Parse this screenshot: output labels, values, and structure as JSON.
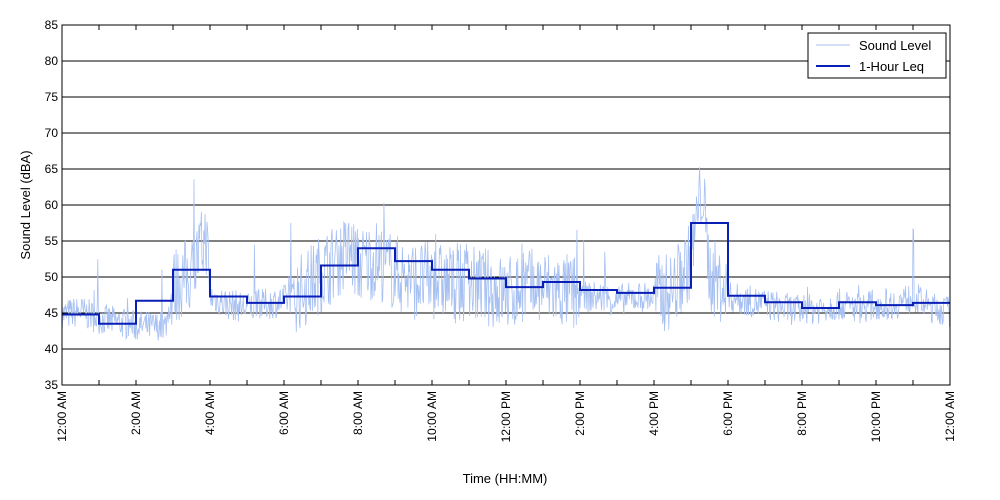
{
  "chart_data": {
    "type": "line",
    "title": "",
    "xlabel": "Time (HH:MM)",
    "ylabel": "Sound Level (dBA)",
    "xlim": [
      0,
      24
    ],
    "ylim": [
      35,
      85
    ],
    "y_ticks": [
      35,
      40,
      45,
      50,
      55,
      60,
      65,
      70,
      75,
      80,
      85
    ],
    "x_tick_hours": [
      0,
      2,
      4,
      6,
      8,
      10,
      12,
      14,
      16,
      18,
      20,
      22,
      24
    ],
    "x_tick_labels": [
      "12:00 AM",
      "2:00 AM",
      "4:00 AM",
      "6:00 AM",
      "8:00 AM",
      "10:00 AM",
      "12:00 PM",
      "2:00 PM",
      "4:00 PM",
      "6:00 PM",
      "8:00 PM",
      "10:00 PM",
      "12:00 AM"
    ],
    "grid": true,
    "grid_axis": "y",
    "legend_position": "top-right",
    "colors": {
      "sound_level": "#a7c0f2",
      "leq": "#0a1fb5"
    },
    "series": [
      {
        "name": "Sound Level",
        "style": "thin light-blue line",
        "x": [
          0.0,
          0.5,
          1.0,
          1.5,
          2.0,
          2.5,
          2.8,
          3.0,
          3.5,
          3.9,
          4.0,
          4.5,
          5.0,
          5.5,
          6.0,
          6.5,
          7.0,
          7.5,
          7.8,
          8.0,
          8.5,
          9.0,
          9.5,
          10.0,
          10.5,
          11.0,
          11.5,
          12.0,
          12.5,
          13.0,
          13.5,
          14.0,
          14.5,
          15.0,
          15.5,
          16.0,
          16.5,
          17.0,
          17.3,
          17.5,
          18.0,
          18.5,
          19.0,
          19.5,
          20.0,
          20.5,
          21.0,
          21.5,
          22.0,
          22.5,
          23.0,
          23.5,
          24.0
        ],
        "y": [
          44.5,
          45.0,
          44.0,
          43.5,
          43.0,
          42.8,
          43.0,
          48.0,
          50.0,
          55.0,
          47.0,
          46.0,
          45.5,
          46.0,
          46.5,
          47.5,
          50.0,
          52.0,
          53.0,
          51.0,
          52.0,
          50.0,
          49.0,
          49.0,
          48.5,
          48.5,
          48.0,
          47.0,
          48.0,
          48.0,
          47.5,
          47.0,
          47.0,
          46.5,
          47.0,
          47.0,
          47.5,
          52.0,
          62.0,
          50.0,
          47.0,
          46.5,
          46.0,
          45.5,
          45.0,
          45.5,
          46.0,
          45.5,
          46.0,
          46.0,
          47.0,
          45.5,
          45.0
        ]
      },
      {
        "name": "1-Hour Leq",
        "style": "thick dark-blue step line",
        "hours": [
          0,
          1,
          2,
          3,
          4,
          5,
          6,
          7,
          8,
          9,
          10,
          11,
          12,
          13,
          14,
          15,
          16,
          17,
          18,
          19,
          20,
          21,
          22,
          23
        ],
        "values": [
          44.8,
          43.5,
          46.7,
          51.0,
          47.3,
          46.4,
          47.3,
          51.6,
          54.0,
          52.2,
          51.0,
          49.8,
          48.6,
          49.3,
          48.2,
          47.8,
          48.5,
          57.5,
          47.4,
          46.5,
          45.7,
          46.5,
          46.1,
          46.4
        ]
      }
    ]
  }
}
